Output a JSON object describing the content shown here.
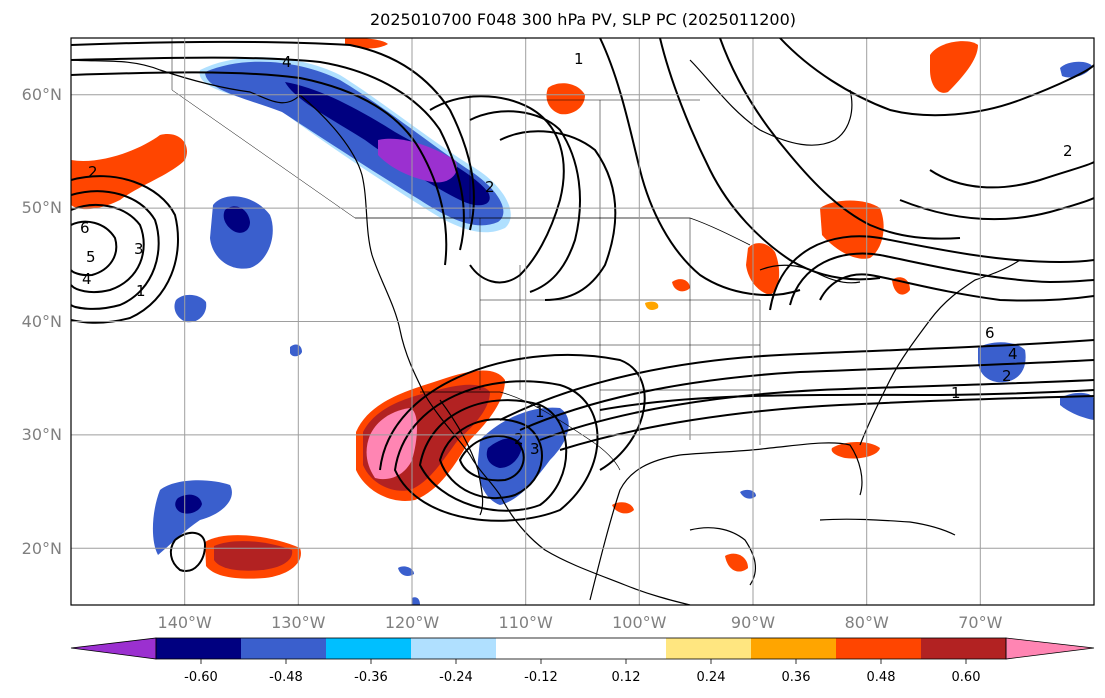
{
  "title": "2025010700 F048 300 hPa PV, SLP PC (2025011200)",
  "map": {
    "projection": "PlateCarree",
    "extent": {
      "lon": [
        -150,
        -60
      ],
      "lat": [
        15,
        65
      ]
    },
    "grid": true,
    "lat_labels": [
      "60°N",
      "50°N",
      "40°N",
      "30°N",
      "20°N"
    ],
    "lon_labels": [
      "140°W",
      "130°W",
      "120°W",
      "110°W",
      "100°W",
      "90°W",
      "80°W",
      "70°W"
    ],
    "contour_labels": [
      "4",
      "2",
      "6",
      "5",
      "4",
      "3",
      "1",
      "1",
      "2",
      "6",
      "4",
      "2",
      "1",
      "2",
      "1",
      "2",
      "3"
    ]
  },
  "colorbar": {
    "ticks": [
      "-0.60",
      "-0.48",
      "-0.36",
      "-0.24",
      "-0.12",
      "0.12",
      "0.24",
      "0.36",
      "0.48",
      "0.60"
    ],
    "colors": [
      "#9b30d0",
      "#000080",
      "#3a5fcd",
      "#00bfff",
      "#b0e0ff",
      "#ffffff",
      "#ffe680",
      "#ffa500",
      "#ff4500",
      "#b22222",
      "#ff85b3"
    ]
  }
}
